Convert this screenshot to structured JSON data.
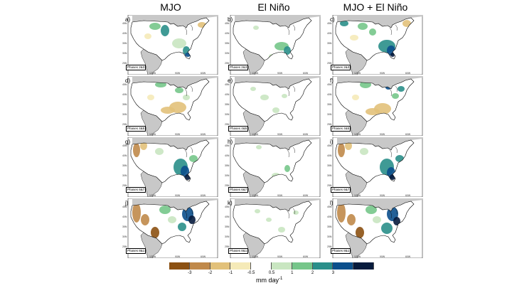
{
  "columns": [
    "MJO",
    "El Niño",
    "MJO + El Niño"
  ],
  "rows": [
    {
      "phase_label": "Phases 2&3",
      "labels": [
        "a)",
        "b)",
        "c)"
      ]
    },
    {
      "phase_label": "Phases 4&5",
      "labels": [
        "d)",
        "e)",
        "f)"
      ]
    },
    {
      "phase_label": "Phases 6&7",
      "labels": [
        "g)",
        "h)",
        "i)"
      ]
    },
    {
      "phase_label": "Phases 8&1",
      "labels": [
        "j)",
        "k)",
        "l)"
      ]
    }
  ],
  "lat_ticks": [
    "45N",
    "40N",
    "35N",
    "30N",
    "25N"
  ],
  "lon_ticks": [
    "120W",
    "90W",
    "60W"
  ],
  "colorbar": {
    "ticks": [
      "-3",
      "-2",
      "-1",
      "-0.5",
      "0.5",
      "1",
      "2",
      "3"
    ],
    "colors": [
      "#8c5112",
      "#c0894a",
      "#e2c17a",
      "#f5eab8",
      "#ffffff",
      "#c9e6c1",
      "#76c68a",
      "#2a8f8a",
      "#0b4f8c",
      "#071b3d"
    ],
    "units_base": "mm day",
    "units_exp": "-1"
  },
  "map_colors": {
    "land": "#ffffff",
    "outside": "#c8c8c8",
    "coast": "#000000"
  }
}
